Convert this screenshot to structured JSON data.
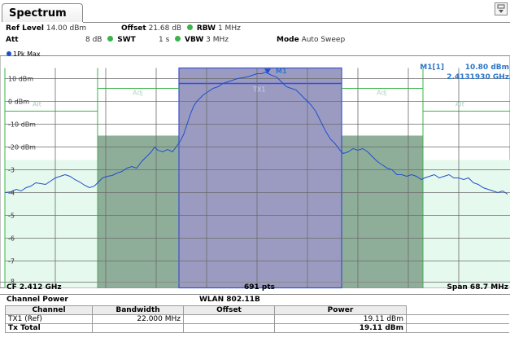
{
  "tab": {
    "title": "Spectrum"
  },
  "settings": {
    "ref_level_label": "Ref Level",
    "ref_level_value": "14.00 dBm",
    "offset_label": "Offset",
    "offset_value": "21.68 dB",
    "rbw_label": "RBW",
    "rbw_value": "1 MHz",
    "att_label": "Att",
    "att_value": "8 dB",
    "swt_label": "SWT",
    "swt_value": "1 s",
    "vbw_label": "VBW",
    "vbw_value": "3 MHz",
    "mode_label": "Mode",
    "mode_value": "Auto Sweep"
  },
  "diagram": {
    "trace_label": "1Pk Max",
    "marker_name": "M1[1]",
    "marker_level": "10.80 dBm",
    "marker_freq": "2.4131930 GHz",
    "marker_tag": "M1",
    "channel_label": "TX1",
    "adj_labels": [
      "Alt",
      "Adj",
      "Adj",
      "Alt"
    ],
    "y_labels": [
      "10 dBm",
      "0 dBm",
      "-10 dBm",
      "-20 dBm",
      "-3",
      "-4",
      "-5",
      "-6",
      "-7",
      "-8"
    ],
    "trace_color": "#1f4fcc",
    "channel_fill": "#9b9bc2",
    "adj_fill": "#8fae9a",
    "alt_fill": "#e6f9ee"
  },
  "status": {
    "cf": "CF 2.412 GHz",
    "points": "691 pts",
    "span": "Span 68.7 MHz"
  },
  "channel_power": {
    "title": "Channel Power",
    "standard": "WLAN 802.11B",
    "headers": [
      "Channel",
      "Bandwidth",
      "Offset",
      "Power"
    ],
    "rows": [
      {
        "channel": "TX1 (Ref)",
        "bandwidth": "22.000 MHz",
        "offset": "",
        "power": "19.11 dBm"
      },
      {
        "channel": "Tx Total",
        "bandwidth": "",
        "offset": "",
        "power": "19.11 dBm"
      }
    ]
  }
}
